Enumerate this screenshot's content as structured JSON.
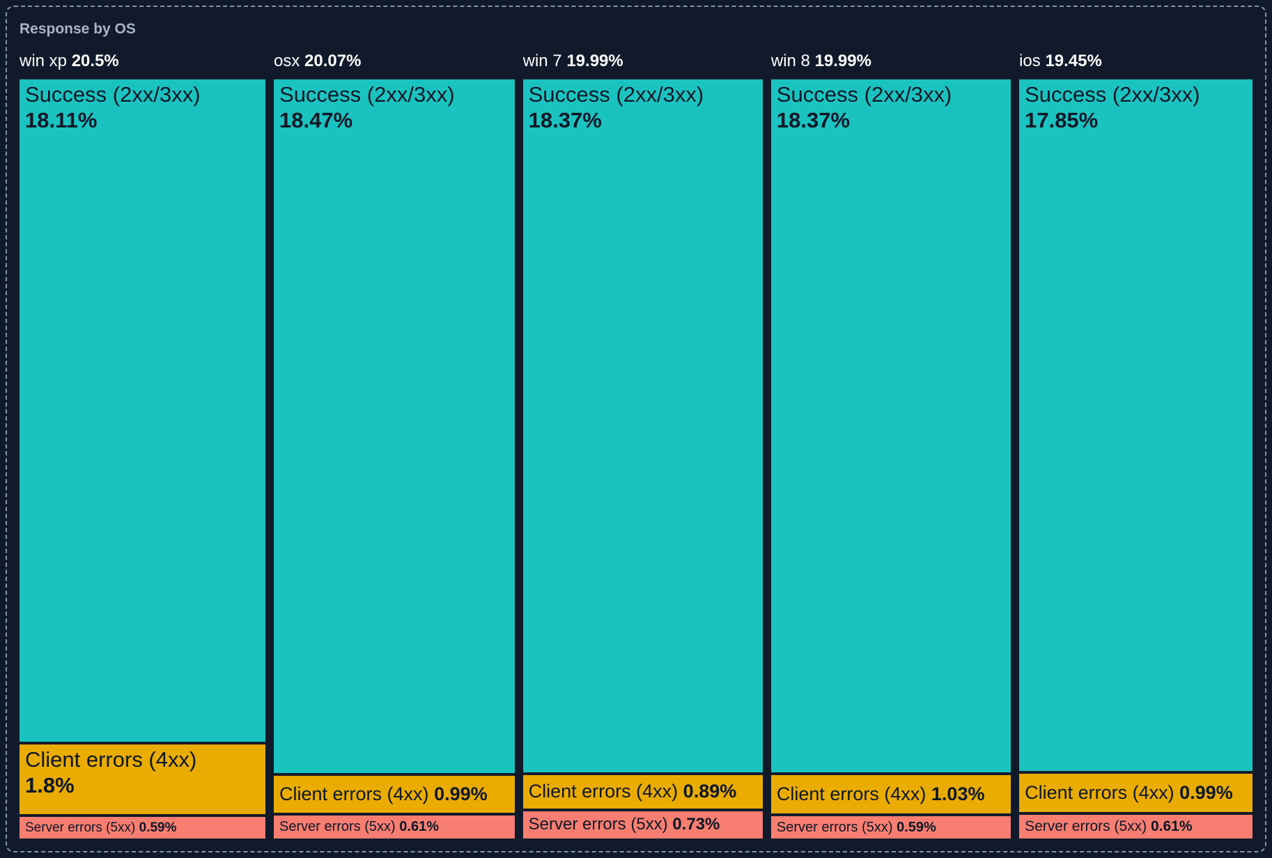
{
  "panel": {
    "title": "Response by OS"
  },
  "colors": {
    "background": "#101A2B",
    "panel_border": "#8496AF",
    "title_text": "#A9B4C3",
    "header_text": "#FFFFFF",
    "segment_text": "#0D1726",
    "success": "#1AC3C0",
    "client": "#EAAC00",
    "server": "#F87E72"
  },
  "chart_data": {
    "type": "icicle",
    "title": "Response by OS",
    "orientation": "vertical-columns",
    "legend_position": "none",
    "grid": false,
    "unit": "%",
    "total": 100,
    "columns": [
      {
        "os": "win xp",
        "share": "20.5%",
        "share_value": 20.5,
        "segments": [
          {
            "kind": "success",
            "label": "Success (2xx/3xx)",
            "pct": "18.11%",
            "value": 18.11
          },
          {
            "kind": "client",
            "label": "Client errors (4xx)",
            "pct": "1.8%",
            "value": 1.8
          },
          {
            "kind": "server",
            "label": "Server errors (5xx)",
            "pct": "0.59%",
            "value": 0.59
          }
        ]
      },
      {
        "os": "osx",
        "share": "20.07%",
        "share_value": 20.07,
        "segments": [
          {
            "kind": "success",
            "label": "Success (2xx/3xx)",
            "pct": "18.47%",
            "value": 18.47
          },
          {
            "kind": "client",
            "label": "Client errors (4xx)",
            "pct": "0.99%",
            "value": 0.99
          },
          {
            "kind": "server",
            "label": "Server errors (5xx)",
            "pct": "0.61%",
            "value": 0.61
          }
        ]
      },
      {
        "os": "win 7",
        "share": "19.99%",
        "share_value": 19.99,
        "segments": [
          {
            "kind": "success",
            "label": "Success (2xx/3xx)",
            "pct": "18.37%",
            "value": 18.37
          },
          {
            "kind": "client",
            "label": "Client errors (4xx)",
            "pct": "0.89%",
            "value": 0.89
          },
          {
            "kind": "server",
            "label": "Server errors (5xx)",
            "pct": "0.73%",
            "value": 0.73
          }
        ]
      },
      {
        "os": "win 8",
        "share": "19.99%",
        "share_value": 19.99,
        "segments": [
          {
            "kind": "success",
            "label": "Success (2xx/3xx)",
            "pct": "18.37%",
            "value": 18.37
          },
          {
            "kind": "client",
            "label": "Client errors (4xx)",
            "pct": "1.03%",
            "value": 1.03
          },
          {
            "kind": "server",
            "label": "Server errors (5xx)",
            "pct": "0.59%",
            "value": 0.59
          }
        ]
      },
      {
        "os": "ios",
        "share": "19.45%",
        "share_value": 19.45,
        "segments": [
          {
            "kind": "success",
            "label": "Success (2xx/3xx)",
            "pct": "17.85%",
            "value": 17.85
          },
          {
            "kind": "client",
            "label": "Client errors (4xx)",
            "pct": "0.99%",
            "value": 0.99
          },
          {
            "kind": "server",
            "label": "Server errors (5xx)",
            "pct": "0.61%",
            "value": 0.61
          }
        ]
      }
    ]
  }
}
